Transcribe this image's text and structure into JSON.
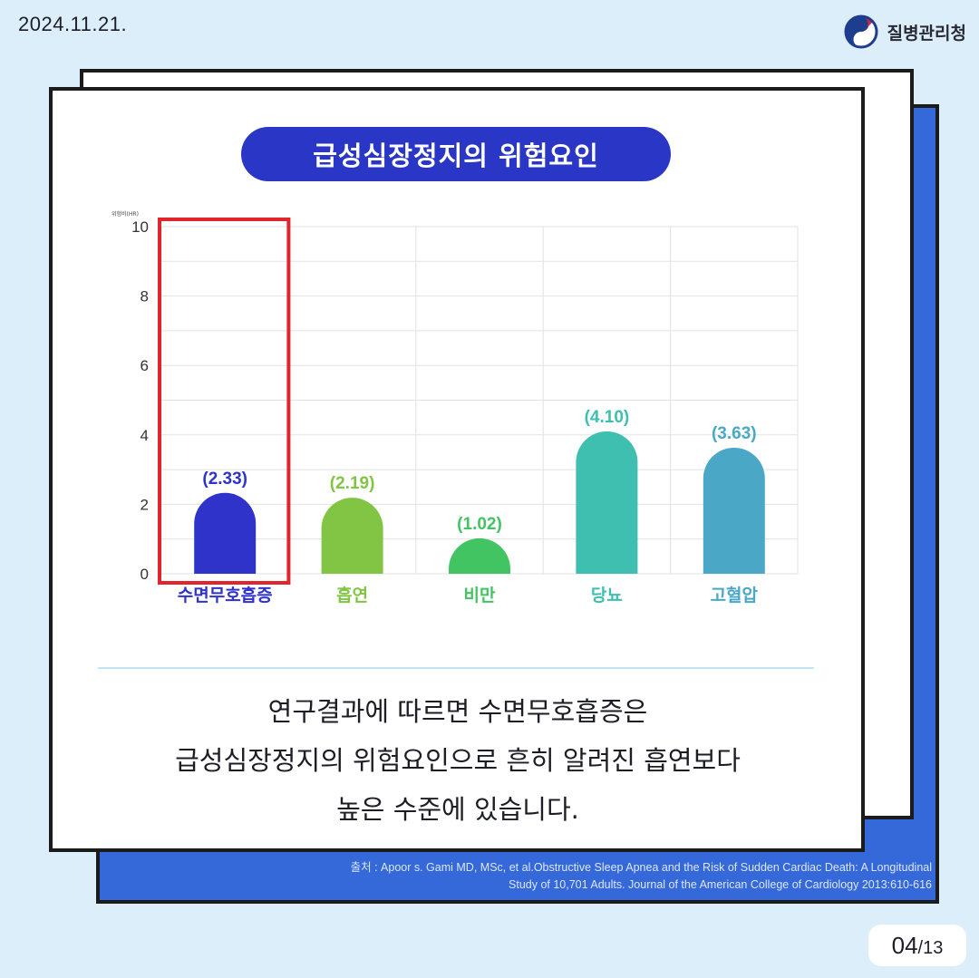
{
  "header": {
    "date": "2024.11.21.",
    "org_name": "질병관리청"
  },
  "title": "급성심장정지의 위험요인",
  "chart_data": {
    "type": "bar",
    "title": "급성심장정지의 위험요인",
    "ylabel": "위험비(HR)",
    "ylim": [
      0,
      10
    ],
    "yticks": [
      0,
      2,
      4,
      6,
      8,
      10
    ],
    "grid": true,
    "categories": [
      "수면무호흡증",
      "흡연",
      "비만",
      "당뇨",
      "고혈압"
    ],
    "values": [
      2.33,
      2.19,
      1.02,
      4.1,
      3.63
    ],
    "value_labels": [
      "(2.33)",
      "(2.19)",
      "(1.02)",
      "(4.10)",
      "(3.63)"
    ],
    "colors": [
      "#2f33c9",
      "#82c544",
      "#43c463",
      "#3ebfb0",
      "#4aa8c6"
    ],
    "highlight": "수면무호흡증"
  },
  "description": {
    "line1": "연구결과에 따르면 수면무호흡증은",
    "line2": "급성심장정지의 위험요인으로 흔히 알려진 흡연보다",
    "line3": "높은 수준에 있습니다."
  },
  "source": {
    "line1": "출처 : Apoor s. Gami MD, MSc, et al.Obstructive Sleep Apnea and the Risk of Sudden Cardiac Death: A Longitudinal",
    "line2": "Study of 10,701 Adults. Journal of the American College of Cardiology 2013:610-616"
  },
  "page": {
    "current": "04",
    "total": "/13"
  }
}
